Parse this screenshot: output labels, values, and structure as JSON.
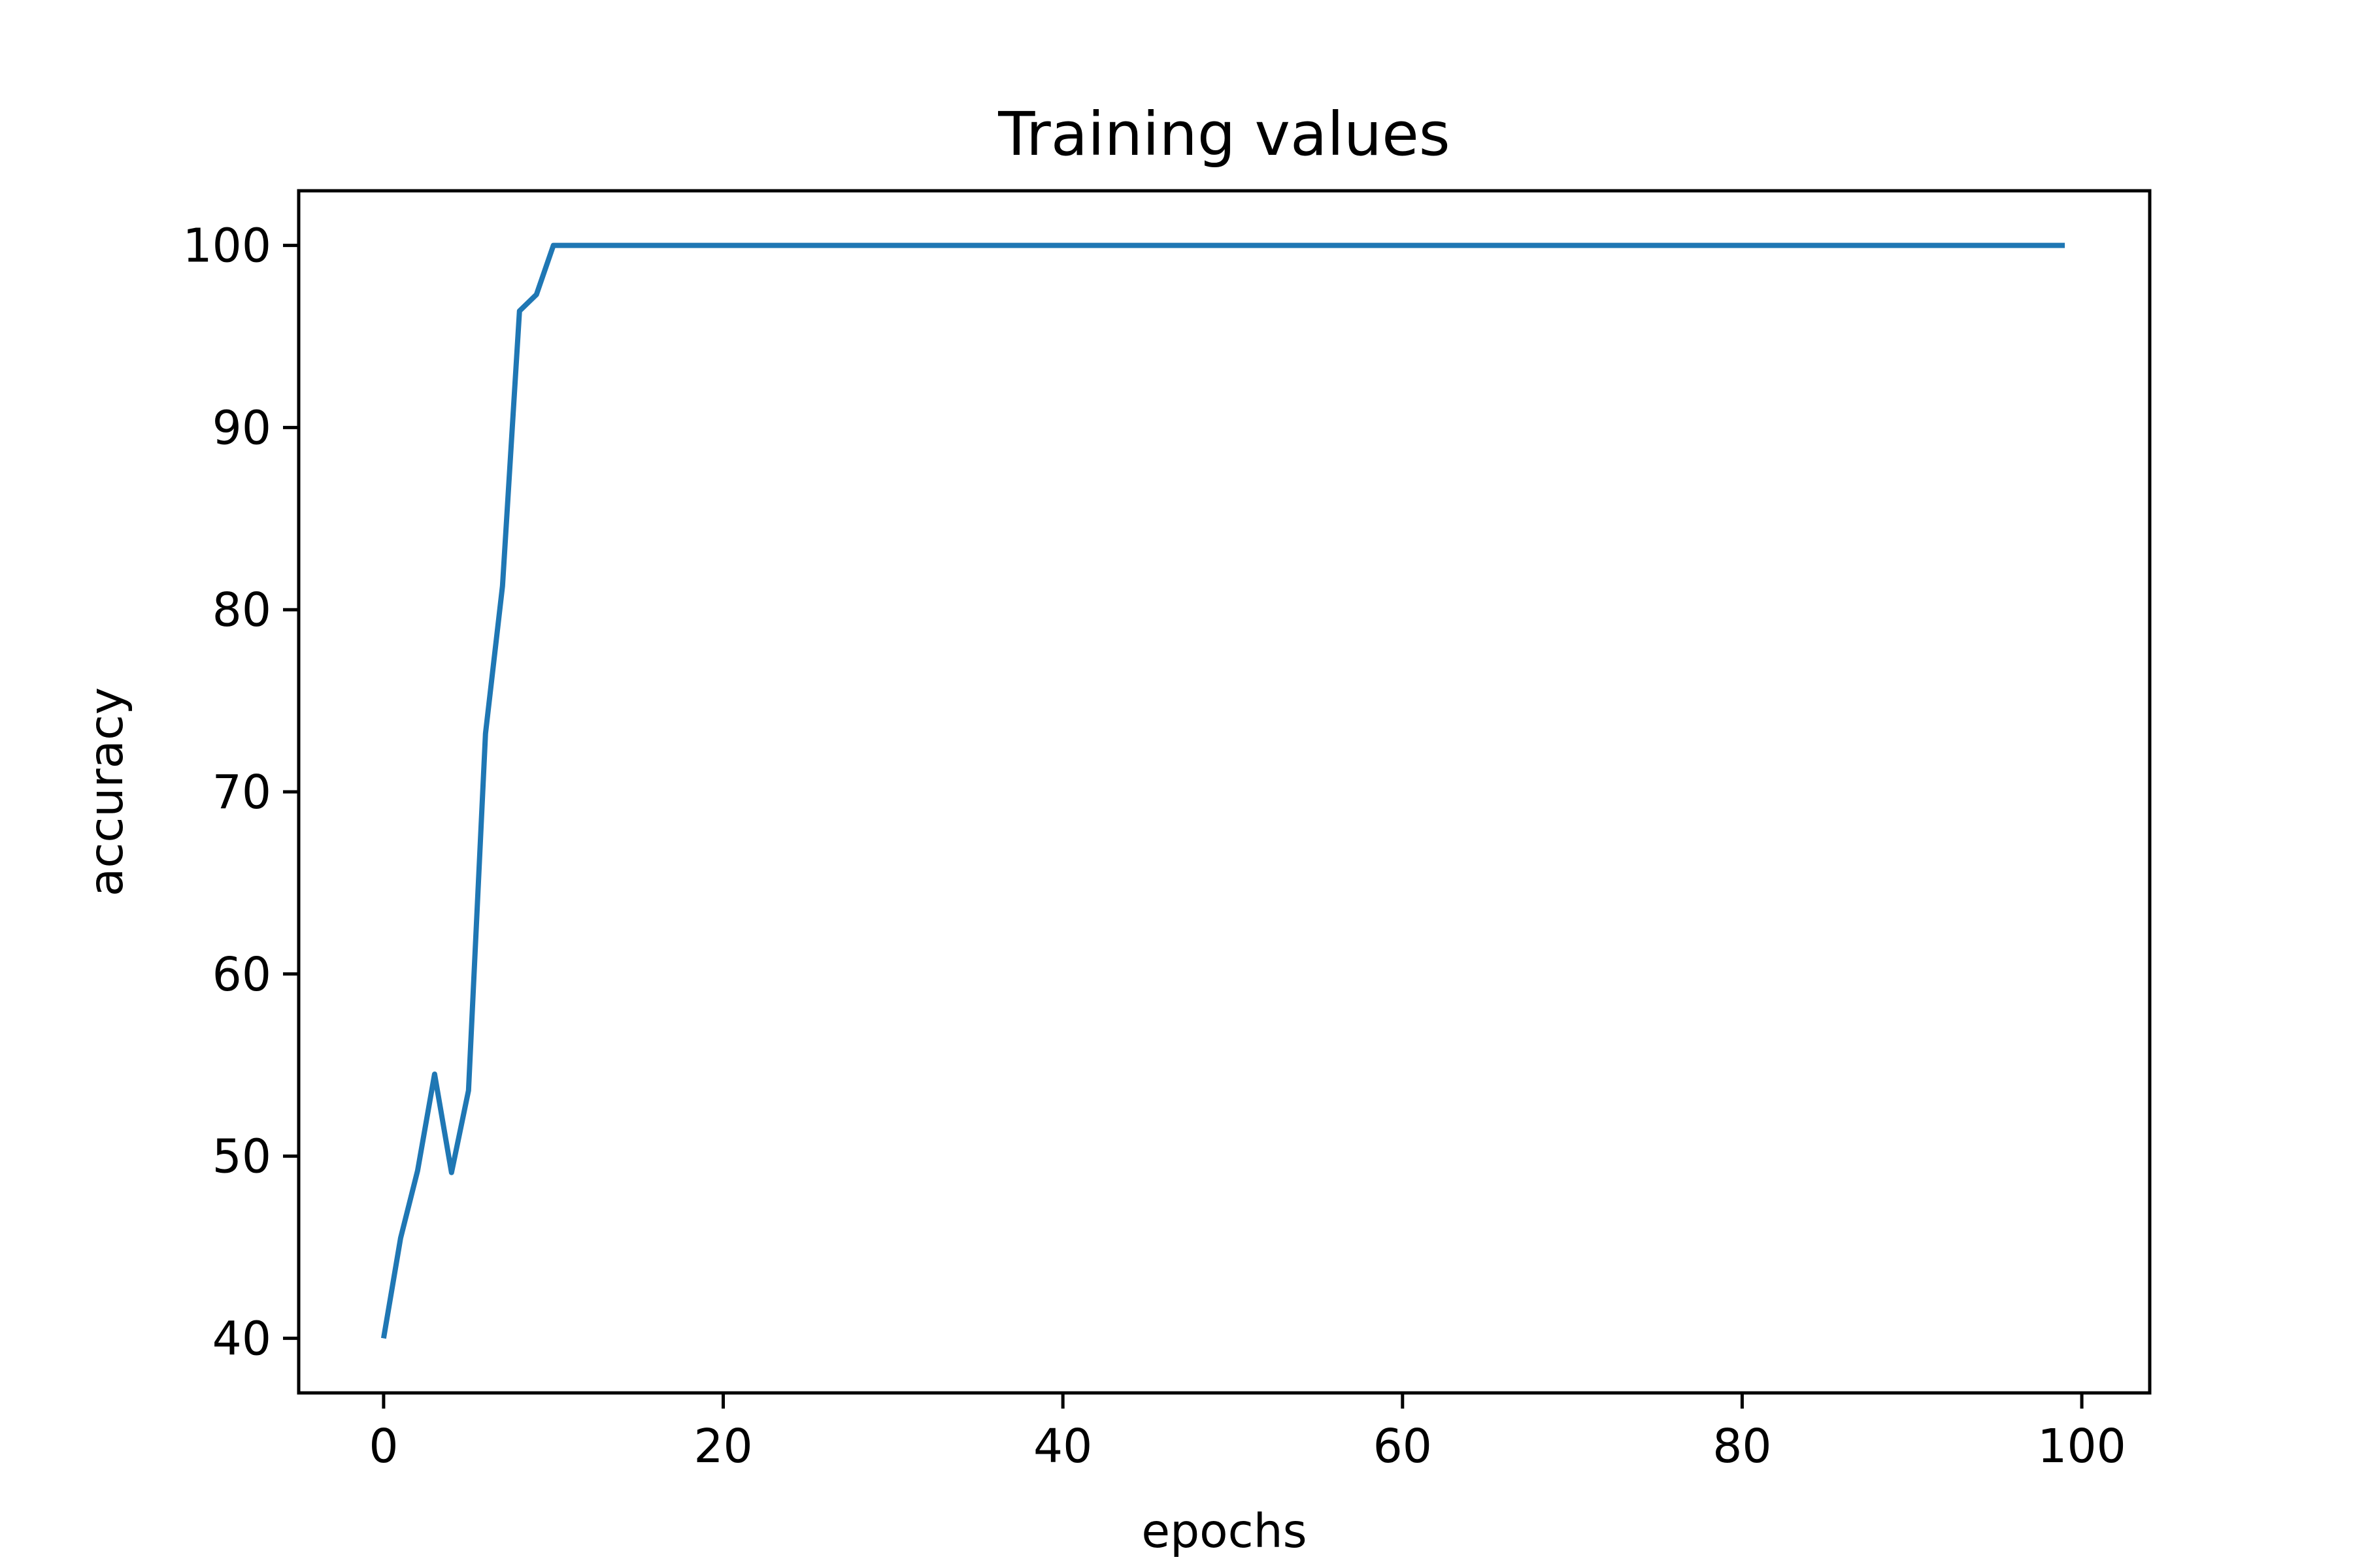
{
  "chart_data": {
    "type": "line",
    "title": "Training values",
    "xlabel": "epochs",
    "ylabel": "accuracy",
    "xlim": [
      -5,
      104
    ],
    "ylim": [
      37,
      103
    ],
    "xticks": [
      0,
      20,
      40,
      60,
      80,
      100
    ],
    "yticks": [
      40,
      50,
      60,
      70,
      80,
      90,
      100
    ],
    "xtick_labels": [
      "0",
      "20",
      "40",
      "60",
      "80",
      "100"
    ],
    "ytick_labels": [
      "40",
      "50",
      "60",
      "70",
      "80",
      "90",
      "100"
    ],
    "grid": false,
    "legend": "none",
    "series": [
      {
        "color": "#1f77b4",
        "x": [
          0,
          1,
          2,
          3,
          4,
          5,
          6,
          7,
          8,
          9,
          10,
          20,
          30,
          40,
          50,
          60,
          70,
          80,
          90,
          99
        ],
        "y": [
          40.0,
          45.5,
          49.2,
          54.5,
          49.1,
          53.6,
          73.2,
          81.3,
          96.4,
          97.3,
          100,
          100,
          100,
          100,
          100,
          100,
          100,
          100,
          100,
          100
        ]
      }
    ]
  }
}
